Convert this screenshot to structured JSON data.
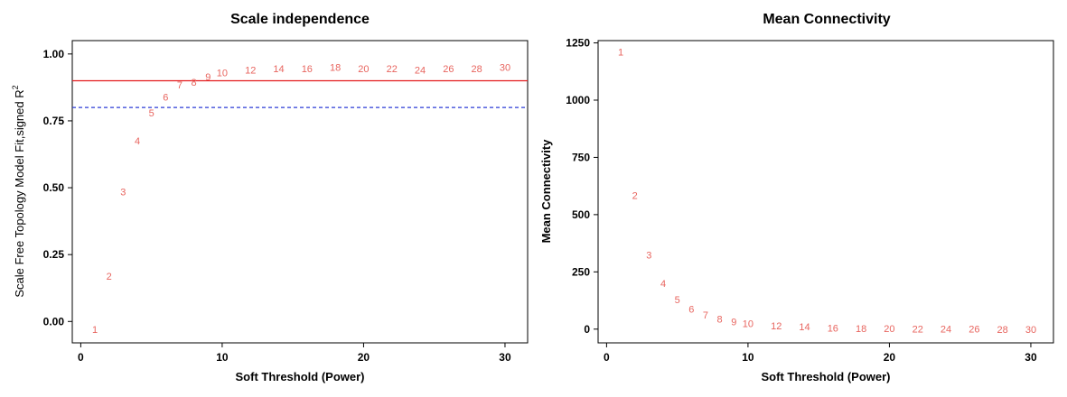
{
  "colors": {
    "points": "#e8655f",
    "threshold_solid": "#e31a1c",
    "threshold_dashed": "#2b3bd6",
    "axis": "#000000",
    "background": "#ffffff"
  },
  "chart_data": [
    {
      "type": "scatter",
      "title": "Scale independence",
      "xlabel": "Soft Threshold (Power)",
      "ylabel": "Scale Free Topology Model Fit,signed R",
      "ylabel_superscript": "2",
      "xlim": [
        -0.6,
        31.6
      ],
      "ylim": [
        -0.08,
        1.05
      ],
      "xticks": [
        0,
        10,
        20,
        30
      ],
      "yticks": [
        0.0,
        0.25,
        0.5,
        0.75,
        1.0
      ],
      "ytick_labels": [
        "0.00",
        "0.25",
        "0.50",
        "0.75",
        "1.00"
      ],
      "grid": false,
      "hlines": [
        {
          "y": 0.9,
          "style": "solid",
          "color": "#e31a1c"
        },
        {
          "y": 0.8,
          "style": "dashed",
          "color": "#2b3bd6"
        }
      ],
      "points": [
        {
          "x": 1,
          "y": -0.03,
          "label": "1"
        },
        {
          "x": 2,
          "y": 0.17,
          "label": "2"
        },
        {
          "x": 3,
          "y": 0.485,
          "label": "3"
        },
        {
          "x": 4,
          "y": 0.675,
          "label": "4"
        },
        {
          "x": 5,
          "y": 0.78,
          "label": "5"
        },
        {
          "x": 6,
          "y": 0.84,
          "label": "6"
        },
        {
          "x": 7,
          "y": 0.885,
          "label": "7"
        },
        {
          "x": 8,
          "y": 0.895,
          "label": "8"
        },
        {
          "x": 9,
          "y": 0.915,
          "label": "9"
        },
        {
          "x": 10,
          "y": 0.93,
          "label": "10"
        },
        {
          "x": 12,
          "y": 0.94,
          "label": "12"
        },
        {
          "x": 14,
          "y": 0.945,
          "label": "14"
        },
        {
          "x": 16,
          "y": 0.945,
          "label": "16"
        },
        {
          "x": 18,
          "y": 0.95,
          "label": "18"
        },
        {
          "x": 20,
          "y": 0.945,
          "label": "20"
        },
        {
          "x": 22,
          "y": 0.945,
          "label": "22"
        },
        {
          "x": 24,
          "y": 0.94,
          "label": "24"
        },
        {
          "x": 26,
          "y": 0.945,
          "label": "26"
        },
        {
          "x": 28,
          "y": 0.945,
          "label": "28"
        },
        {
          "x": 30,
          "y": 0.95,
          "label": "30"
        }
      ]
    },
    {
      "type": "scatter",
      "title": "Mean Connectivity",
      "xlabel": "Soft Threshold (Power)",
      "ylabel": "Mean Connectivity",
      "xlim": [
        -0.6,
        31.6
      ],
      "ylim": [
        -60,
        1260
      ],
      "xticks": [
        0,
        10,
        20,
        30
      ],
      "yticks": [
        0,
        250,
        500,
        750,
        1000,
        1250
      ],
      "ytick_labels": [
        "0",
        "250",
        "500",
        "750",
        "1000",
        "1250"
      ],
      "grid": false,
      "points": [
        {
          "x": 1,
          "y": 1210,
          "label": "1"
        },
        {
          "x": 2,
          "y": 585,
          "label": "2"
        },
        {
          "x": 3,
          "y": 325,
          "label": "3"
        },
        {
          "x": 4,
          "y": 200,
          "label": "4"
        },
        {
          "x": 5,
          "y": 130,
          "label": "5"
        },
        {
          "x": 6,
          "y": 88,
          "label": "6"
        },
        {
          "x": 7,
          "y": 63,
          "label": "7"
        },
        {
          "x": 8,
          "y": 45,
          "label": "8"
        },
        {
          "x": 9,
          "y": 33,
          "label": "9"
        },
        {
          "x": 10,
          "y": 25,
          "label": "10"
        },
        {
          "x": 12,
          "y": 15,
          "label": "12"
        },
        {
          "x": 14,
          "y": 10,
          "label": "14"
        },
        {
          "x": 16,
          "y": 6,
          "label": "16"
        },
        {
          "x": 18,
          "y": 4,
          "label": "18"
        },
        {
          "x": 20,
          "y": 3,
          "label": "20"
        },
        {
          "x": 22,
          "y": 2,
          "label": "22"
        },
        {
          "x": 24,
          "y": 1,
          "label": "24"
        },
        {
          "x": 26,
          "y": 1,
          "label": "26"
        },
        {
          "x": 28,
          "y": 0,
          "label": "28"
        },
        {
          "x": 30,
          "y": 0,
          "label": "30"
        }
      ]
    }
  ]
}
